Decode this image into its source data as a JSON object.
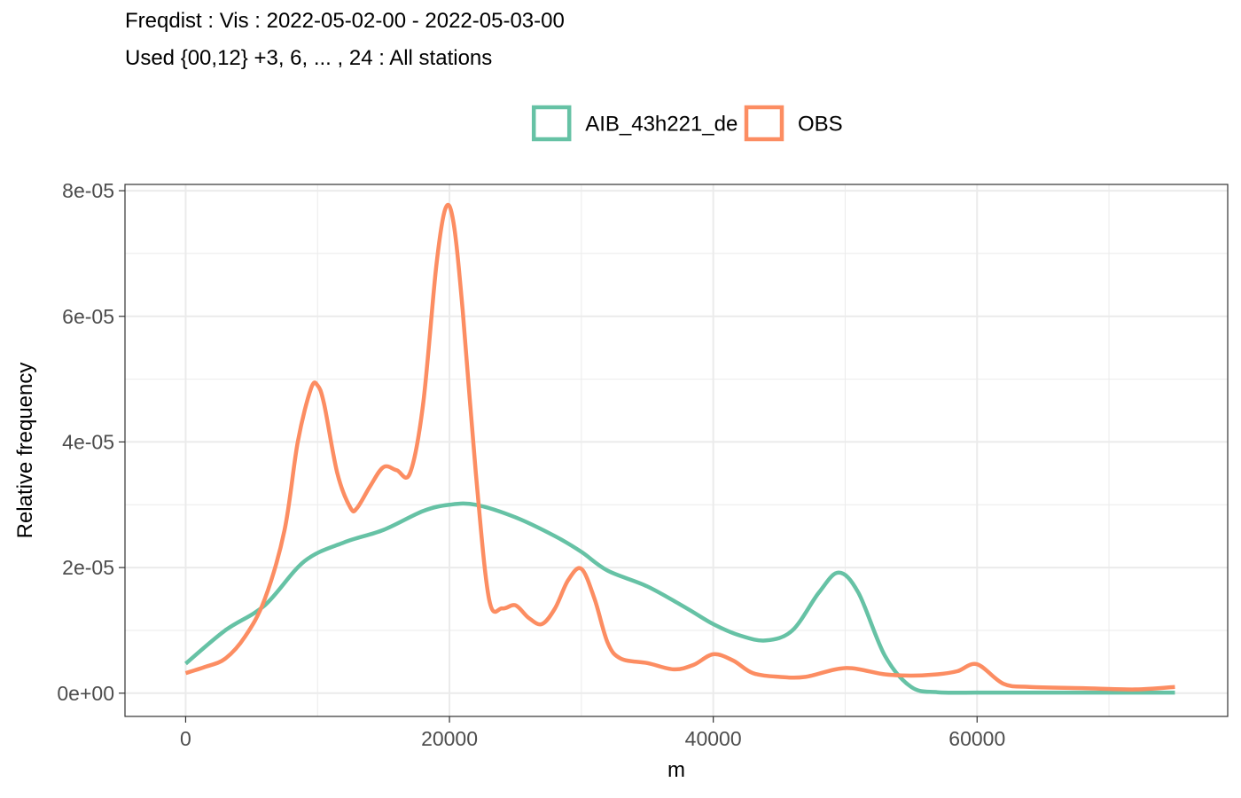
{
  "title": "Freqdist : Vis : 2022-05-02-00 - 2022-05-03-00",
  "subtitle": "Used {00,12} +3, 6, ... , 24 : All stations",
  "chart_data": {
    "type": "line",
    "xlabel": "m",
    "ylabel": "Relative frequency",
    "xlim": [
      -4600,
      79000
    ],
    "ylim": [
      -3.7e-06,
      8.1e-05
    ],
    "x_ticks": [
      0,
      20000,
      40000,
      60000
    ],
    "x_tick_labels": [
      "0",
      "20000",
      "40000",
      "60000"
    ],
    "y_ticks": [
      0,
      2e-05,
      4e-05,
      6e-05,
      8e-05
    ],
    "y_tick_labels": [
      "0e+00",
      "2e-05",
      "4e-05",
      "6e-05",
      "8e-05"
    ],
    "grid": true,
    "legend_position": "top",
    "series": [
      {
        "name": "AIB_43h221_de",
        "color": "#66C2A5",
        "x": [
          0,
          3000,
          6000,
          9000,
          12000,
          15000,
          18000,
          20000,
          22000,
          25000,
          28000,
          30000,
          32000,
          35000,
          38000,
          40000,
          42000,
          44000,
          46000,
          48000,
          49500,
          51000,
          53000,
          55000,
          57000,
          60000,
          65000,
          70000,
          75000
        ],
        "y": [
          4.7e-06,
          1e-05,
          1.4e-05,
          2.1e-05,
          2.4e-05,
          2.6e-05,
          2.9e-05,
          3e-05,
          3e-05,
          2.8e-05,
          2.5e-05,
          2.25e-05,
          1.95e-05,
          1.7e-05,
          1.35e-05,
          1.1e-05,
          9.2e-06,
          8.4e-06,
          1e-05,
          1.6e-05,
          1.92e-05,
          1.6e-05,
          6e-06,
          1e-06,
          1.5e-07,
          1e-07,
          1e-07,
          1e-07,
          1e-07
        ]
      },
      {
        "name": "OBS",
        "color": "#FC8D62",
        "x": [
          0,
          1500,
          3000,
          4500,
          6000,
          7500,
          8500,
          9500,
          10000,
          10500,
          11500,
          12500,
          13000,
          14000,
          15000,
          16000,
          17000,
          18000,
          19000,
          19700,
          20300,
          21000,
          22000,
          23000,
          24000,
          25000,
          26000,
          27000,
          28000,
          29000,
          30000,
          31000,
          32000,
          33000,
          35000,
          37000,
          38500,
          40000,
          41500,
          43000,
          45000,
          47000,
          50000,
          53000,
          55000,
          57000,
          58500,
          60000,
          62000,
          64000,
          68000,
          72000,
          75000
        ],
        "y": [
          3.2e-06,
          4.2e-06,
          5.5e-06,
          9e-06,
          1.5e-05,
          2.6e-05,
          4e-05,
          4.85e-05,
          4.9e-05,
          4.6e-05,
          3.5e-05,
          2.95e-05,
          2.95e-05,
          3.3e-05,
          3.6e-05,
          3.55e-05,
          3.5e-05,
          4.6e-05,
          6.8e-05,
          7.72e-05,
          7.5e-05,
          6.1e-05,
          3.5e-05,
          1.5e-05,
          1.35e-05,
          1.4e-05,
          1.2e-05,
          1.1e-05,
          1.35e-05,
          1.8e-05,
          1.98e-05,
          1.5e-05,
          8e-06,
          5.5e-06,
          4.8e-06,
          3.8e-06,
          4.5e-06,
          6.2e-06,
          5.2e-06,
          3.2e-06,
          2.6e-06,
          2.6e-06,
          4e-06,
          3e-06,
          2.8e-06,
          3e-06,
          3.5e-06,
          4.6e-06,
          1.5e-06,
          1e-06,
          8e-07,
          6e-07,
          1e-06
        ]
      }
    ]
  }
}
